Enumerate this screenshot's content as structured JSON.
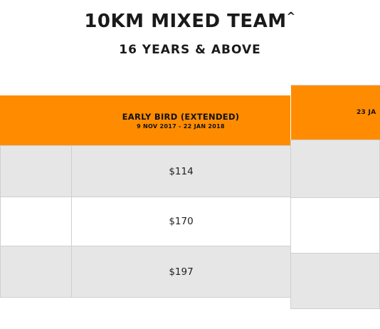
{
  "heading": {
    "title": "10KM MIXED TEAM",
    "title_mark": "^",
    "subtitle": "16 YEARS & ABOVE"
  },
  "colors": {
    "accent": "#ff8c00",
    "row_grey": "#e6e6e6"
  },
  "table": {
    "columns": [
      {
        "label": "EARLY BIRD (EXTENDED)",
        "dates": "9 NOV 2017 - 22 JAN 2018"
      },
      {
        "label": "23 JA"
      }
    ],
    "rows": [
      {
        "price": "$114"
      },
      {
        "price": "$170"
      },
      {
        "price": "$197"
      }
    ]
  }
}
